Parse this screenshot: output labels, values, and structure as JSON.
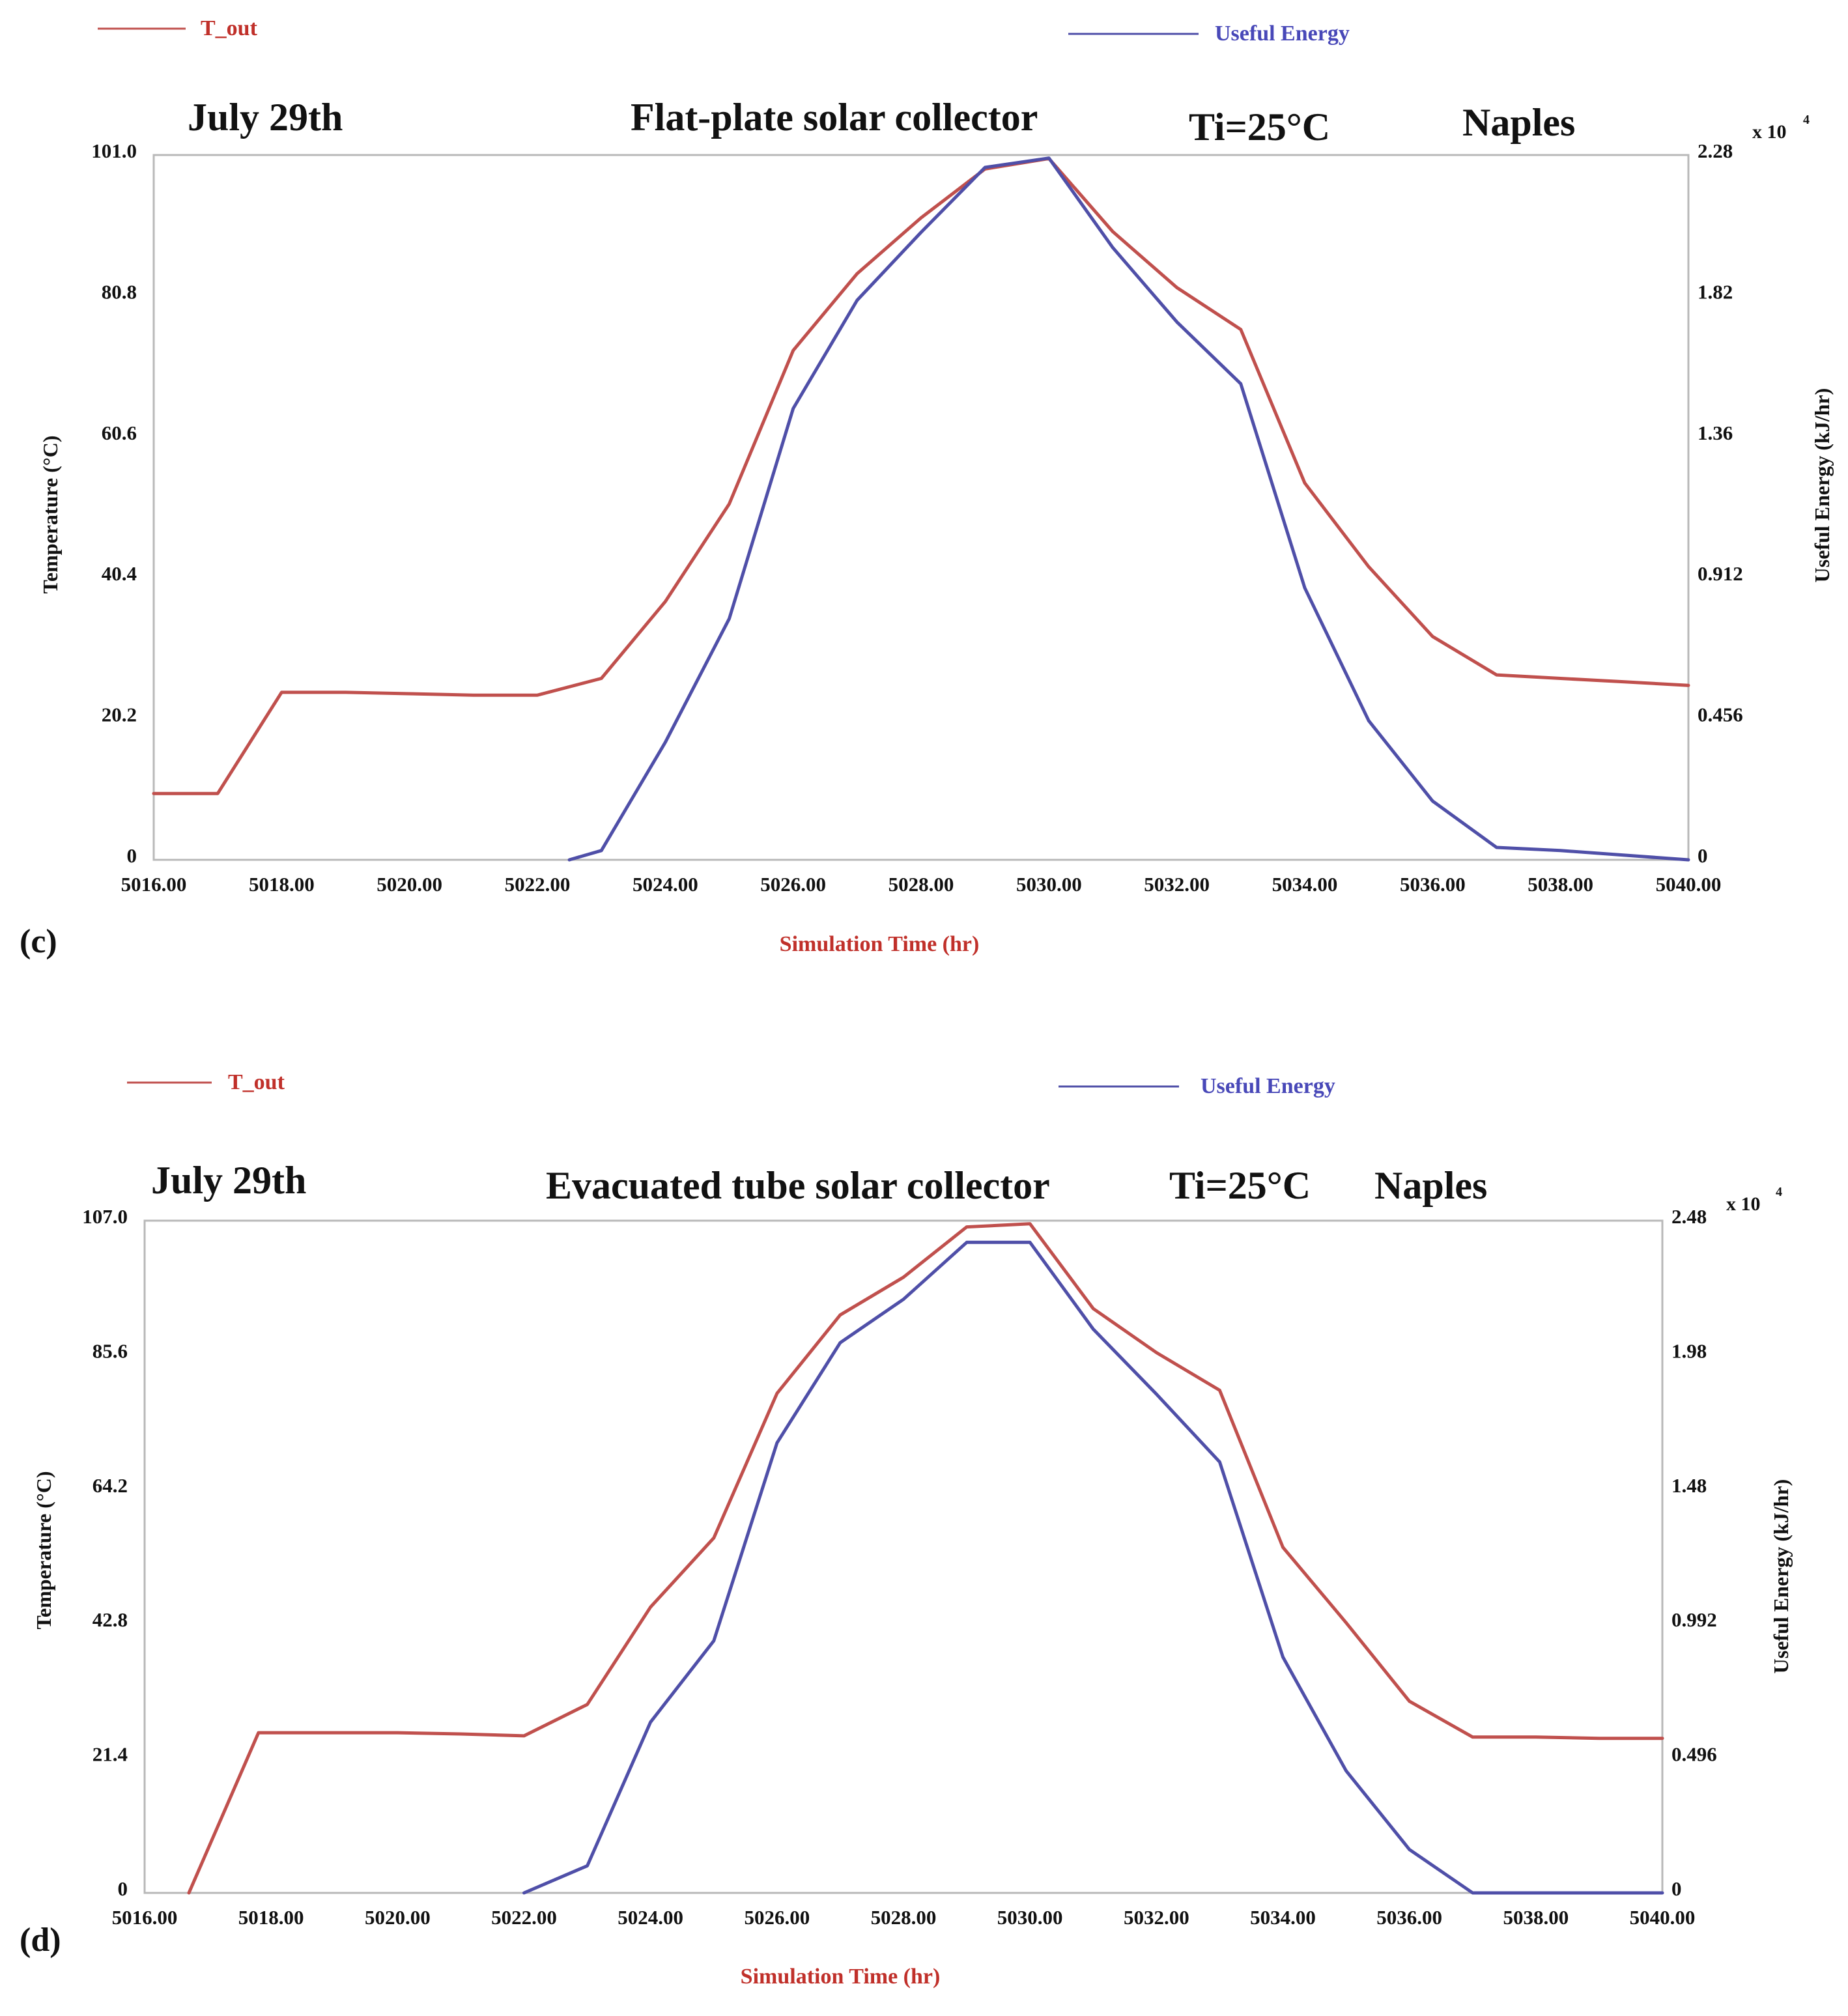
{
  "chart_data": [
    {
      "type": "line",
      "panel_label": "(c)",
      "title_date": "July 29th",
      "title": "Flat-plate solar collector",
      "title_ti": "Ti=25°C",
      "title_city": "Naples",
      "xlabel": "Simulation Time (hr)",
      "ylabel_left": "Temperature (°C)",
      "ylabel_right": "Useful Energy (kJ/hr)",
      "right_multiplier": "x 10",
      "right_multiplier_exp": "4",
      "xlim": [
        5016,
        5040
      ],
      "ylim_left": [
        0,
        101.0
      ],
      "ylim_right": [
        0,
        2.28
      ],
      "x_ticks": [
        "5016.00",
        "5018.00",
        "5020.00",
        "5022.00",
        "5024.00",
        "5026.00",
        "5028.00",
        "5030.00",
        "5032.00",
        "5034.00",
        "5036.00",
        "5038.00",
        "5040.00"
      ],
      "y_left_ticks": [
        "0",
        "20.2",
        "40.4",
        "60.6",
        "80.8",
        "101.0"
      ],
      "y_right_ticks": [
        "0",
        "0.456",
        "0.912",
        "1.36",
        "1.82",
        "2.28"
      ],
      "legend": {
        "t_out": "T_out",
        "energy": "Useful Energy"
      },
      "colors": {
        "t_out": "#c0504d",
        "energy": "#4f4fa8"
      },
      "series": [
        {
          "name": "T_out",
          "axis": "left",
          "x": [
            5016,
            5017,
            5018,
            5019,
            5020,
            5021,
            5022,
            5023,
            5024,
            5025,
            5026,
            5027,
            5028,
            5029,
            5030,
            5031,
            5032,
            5033,
            5034,
            5035,
            5036,
            5037,
            5038,
            5039,
            5040
          ],
          "y": [
            9.5,
            9.5,
            24,
            24,
            23.8,
            23.6,
            23.6,
            26,
            37,
            51,
            73,
            84,
            92,
            99,
            100.5,
            90,
            82,
            76,
            54,
            42,
            32,
            26.5,
            26,
            25.5,
            25
          ]
        },
        {
          "name": "Useful Energy",
          "axis": "right",
          "x": [
            5022.5,
            5023,
            5024,
            5025,
            5026,
            5027,
            5028,
            5029,
            5030,
            5031,
            5032,
            5033,
            5034,
            5035,
            5036,
            5037,
            5038,
            5039,
            5040
          ],
          "y": [
            0,
            0.03,
            0.38,
            0.78,
            1.46,
            1.81,
            2.03,
            2.24,
            2.27,
            1.98,
            1.74,
            1.54,
            0.88,
            0.45,
            0.19,
            0.04,
            0.03,
            0.015,
            0
          ]
        }
      ]
    },
    {
      "type": "line",
      "panel_label": "(d)",
      "title_date": "July 29th",
      "title": "Evacuated tube solar collector",
      "title_ti": "Ti=25°C",
      "title_city": "Naples",
      "xlabel": "Simulation Time (hr)",
      "ylabel_left": "Temperature (°C)",
      "ylabel_right": "Useful Energy (kJ/hr)",
      "right_multiplier": "x 10",
      "right_multiplier_exp": "4",
      "xlim": [
        5016,
        5040
      ],
      "ylim_left": [
        0,
        107.0
      ],
      "ylim_right": [
        0,
        2.48
      ],
      "x_ticks": [
        "5016.00",
        "5018.00",
        "5020.00",
        "5022.00",
        "5024.00",
        "5026.00",
        "5028.00",
        "5030.00",
        "5032.00",
        "5034.00",
        "5036.00",
        "5038.00",
        "5040.00"
      ],
      "y_left_ticks": [
        "0",
        "21.4",
        "42.8",
        "64.2",
        "85.6",
        "107.0"
      ],
      "y_right_ticks": [
        "0",
        "0.496",
        "0.992",
        "1.48",
        "1.98",
        "2.48"
      ],
      "legend": {
        "t_out": "T_out",
        "energy": "Useful Energy"
      },
      "colors": {
        "t_out": "#c0504d",
        "energy": "#4f4fa8"
      },
      "series": [
        {
          "name": "T_out",
          "axis": "left",
          "x": [
            5016.7,
            5017.8,
            5019,
            5020,
            5021,
            5022,
            5023,
            5024,
            5025,
            5026,
            5027,
            5028,
            5029,
            5030,
            5031,
            5032,
            5033,
            5034,
            5035,
            5036,
            5037,
            5038,
            5039,
            5040
          ],
          "y": [
            0,
            25.5,
            25.5,
            25.5,
            25.3,
            25,
            30,
            45.5,
            56.5,
            79.5,
            92,
            98,
            106,
            106.5,
            93,
            86,
            80,
            55,
            43,
            30.5,
            24.8,
            24.8,
            24.6,
            24.6
          ]
        },
        {
          "name": "Useful Energy",
          "axis": "right",
          "x": [
            5022,
            5023,
            5024,
            5025,
            5026,
            5027,
            5028,
            5029,
            5030,
            5031,
            5032,
            5033,
            5034,
            5035,
            5036,
            5037,
            5038,
            5039,
            5040
          ],
          "y": [
            0,
            0.1,
            0.63,
            0.93,
            1.66,
            2.03,
            2.19,
            2.4,
            2.4,
            2.08,
            1.84,
            1.59,
            0.87,
            0.45,
            0.16,
            0,
            0,
            0,
            0
          ]
        }
      ]
    }
  ]
}
